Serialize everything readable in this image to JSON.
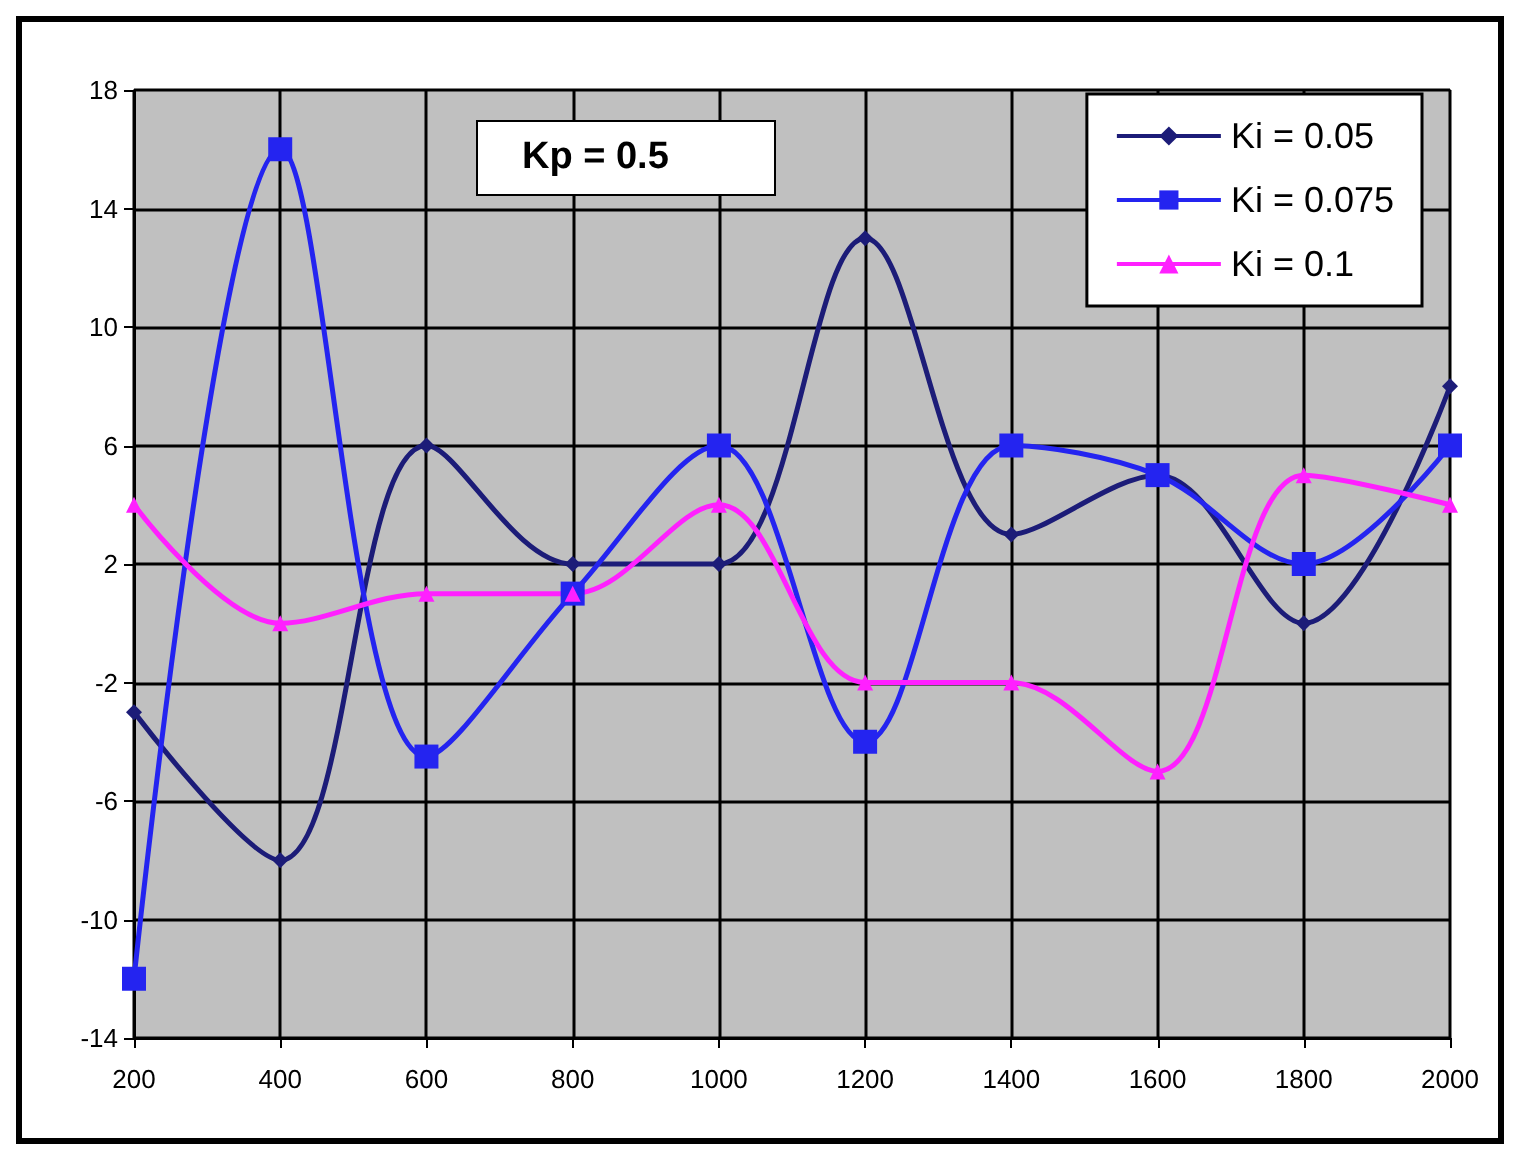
{
  "chart_data": {
    "type": "line",
    "x": [
      200,
      400,
      600,
      800,
      1000,
      1200,
      1400,
      1600,
      1800,
      2000
    ],
    "series": [
      {
        "name": "Ki = 0.05",
        "color": "#1c1c78",
        "marker": "diamond",
        "values": [
          -3,
          -8,
          6,
          2,
          2,
          13,
          3,
          5,
          0,
          8
        ]
      },
      {
        "name": "Ki = 0.075",
        "color": "#2424f0",
        "marker": "square",
        "values": [
          -12,
          16,
          -4.5,
          1,
          6,
          -4,
          6,
          5,
          2,
          6
        ]
      },
      {
        "name": "Ki = 0.1",
        "color": "#ff20ff",
        "marker": "triangle",
        "values": [
          4,
          0,
          1,
          1,
          4,
          -2,
          -2,
          -5,
          5,
          4
        ]
      }
    ],
    "xlim": [
      200,
      2000
    ],
    "xticks": [
      200,
      400,
      600,
      800,
      1000,
      1200,
      1400,
      1600,
      1800,
      2000
    ],
    "ylim": [
      -14,
      18
    ],
    "yticks": [
      -14,
      -10,
      -6,
      -2,
      2,
      6,
      10,
      14,
      18
    ],
    "grid": true,
    "legend": "top right",
    "line_style": "solid",
    "annotations": [
      "Kp = 0.5"
    ]
  }
}
